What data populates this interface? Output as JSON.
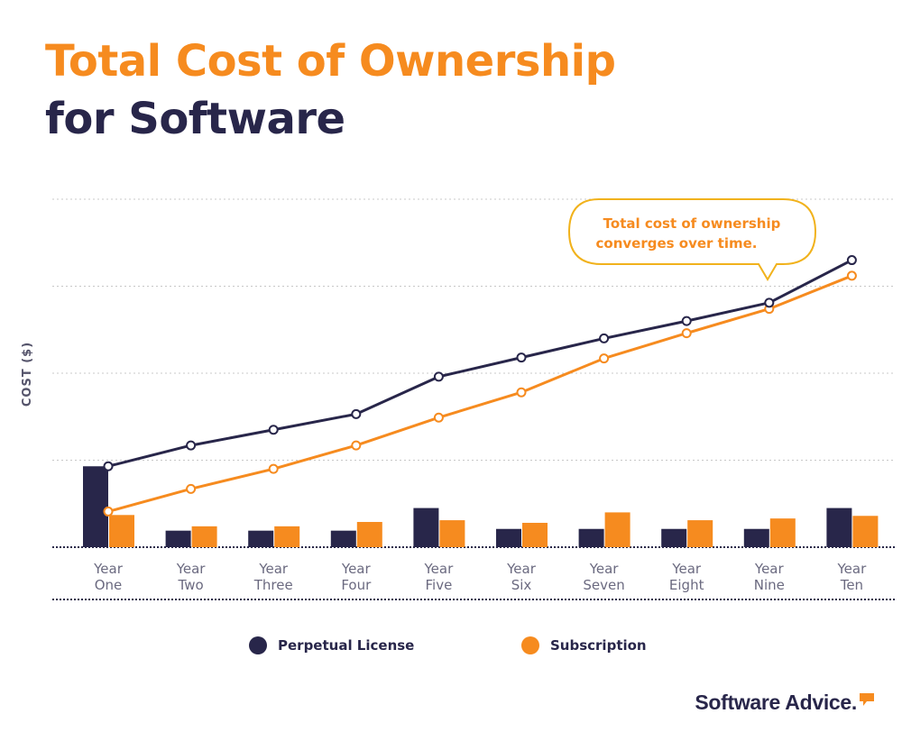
{
  "title": {
    "line1": "Total Cost of Ownership",
    "line2": "for Software"
  },
  "chart_data": {
    "type": "bar",
    "categories": [
      [
        "Year",
        "One"
      ],
      [
        "Year",
        "Two"
      ],
      [
        "Year",
        "Three"
      ],
      [
        "Year",
        "Four"
      ],
      [
        "Year",
        "Five"
      ],
      [
        "Year",
        "Six"
      ],
      [
        "Year",
        "Seven"
      ],
      [
        "Year",
        "Eight"
      ],
      [
        "Year",
        "Nine"
      ],
      [
        "Year",
        "Ten"
      ]
    ],
    "ylabel": "COST ($)",
    "ylim": [
      0,
      4
    ],
    "grid": true,
    "series": [
      {
        "name": "Perpetual License",
        "type": "bar",
        "color": "#28264a",
        "values": [
          0.93,
          0.19,
          0.19,
          0.19,
          0.45,
          0.21,
          0.21,
          0.21,
          0.21,
          0.45
        ]
      },
      {
        "name": "Subscription",
        "type": "bar",
        "color": "#f68b1f",
        "values": [
          0.37,
          0.24,
          0.24,
          0.29,
          0.31,
          0.28,
          0.4,
          0.31,
          0.33,
          0.36
        ]
      },
      {
        "name": "Perpetual License",
        "type": "line",
        "color": "#28264a",
        "values": [
          0.93,
          1.17,
          1.35,
          1.53,
          1.96,
          2.18,
          2.4,
          2.6,
          2.81,
          3.3
        ]
      },
      {
        "name": "Subscription",
        "type": "line",
        "color": "#f68b1f",
        "values": [
          0.41,
          0.67,
          0.9,
          1.17,
          1.49,
          1.78,
          2.17,
          2.46,
          2.74,
          3.12
        ]
      }
    ],
    "annotation": {
      "text_line1": "Total cost of ownership",
      "text_line2": "converges over time."
    },
    "legend": {
      "placement": "bottom",
      "items": [
        {
          "label": "Perpetual License",
          "color": "#28264a"
        },
        {
          "label": "Subscription",
          "color": "#f68b1f"
        }
      ]
    }
  },
  "brand": {
    "name": "Software Advice."
  }
}
